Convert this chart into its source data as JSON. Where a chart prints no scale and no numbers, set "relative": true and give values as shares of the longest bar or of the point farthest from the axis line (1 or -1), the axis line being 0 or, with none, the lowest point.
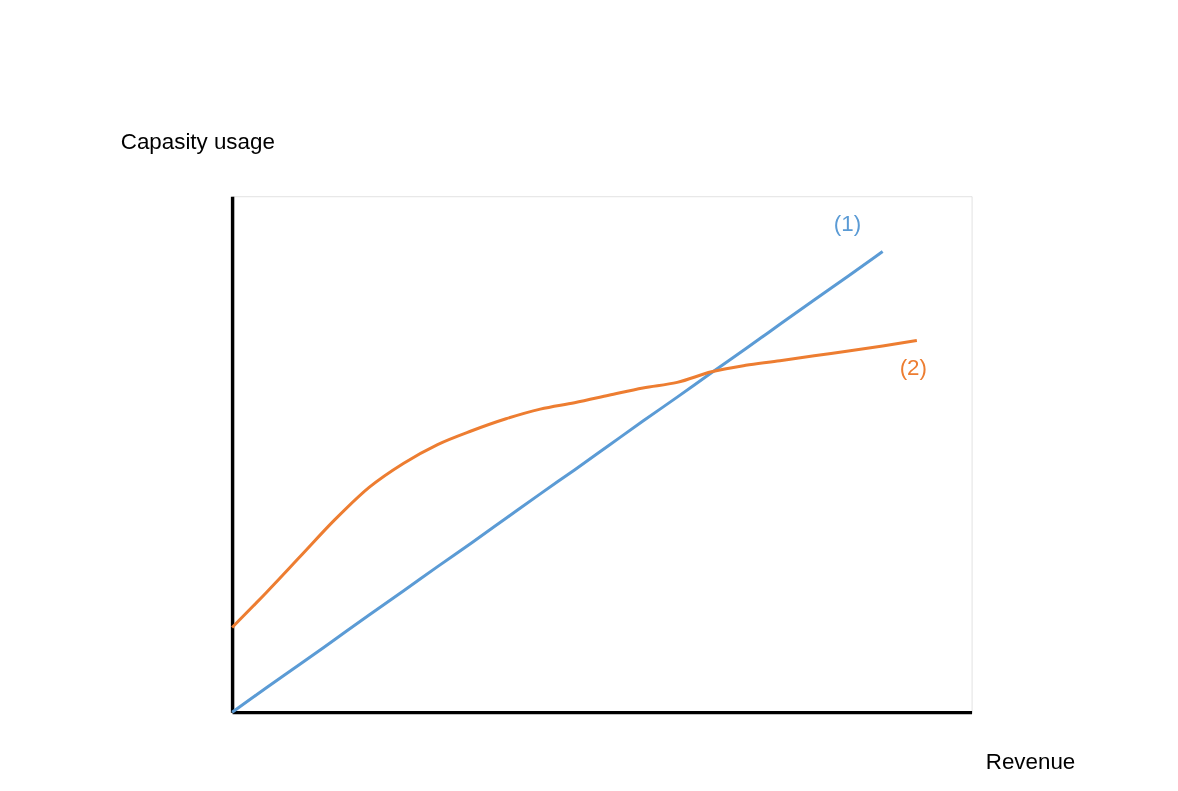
{
  "chart_data": {
    "type": "line",
    "xlabel": "Revenue",
    "ylabel": "Capasity usage",
    "relative": true,
    "tick_labels": false,
    "grid": false,
    "marker": "none",
    "line_style": "solid",
    "categories": [
      null,
      null,
      null,
      null,
      null,
      null,
      null,
      null,
      null,
      null,
      null,
      null,
      null,
      null,
      null,
      null,
      null,
      null,
      null,
      null,
      null
    ],
    "series": [
      {
        "name": "(1)",
        "color": "#5b9bd5",
        "values": [
          0,
          0.053,
          0.105,
          0.158,
          0.211,
          0.263,
          0.316,
          0.368,
          0.421,
          0.474,
          0.526,
          0.579,
          0.632,
          0.684,
          0.737,
          0.789,
          0.842,
          0.895,
          0.947,
          1.0,
          null
        ]
      },
      {
        "name": "(2)",
        "color": "#ed7d31",
        "values": [
          0.184,
          0.26,
          0.339,
          0.418,
          0.488,
          0.54,
          0.581,
          0.611,
          0.637,
          0.658,
          0.672,
          0.688,
          0.704,
          0.716,
          0.739,
          0.753,
          0.763,
          0.774,
          0.784,
          0.795,
          0.807
        ]
      }
    ]
  }
}
